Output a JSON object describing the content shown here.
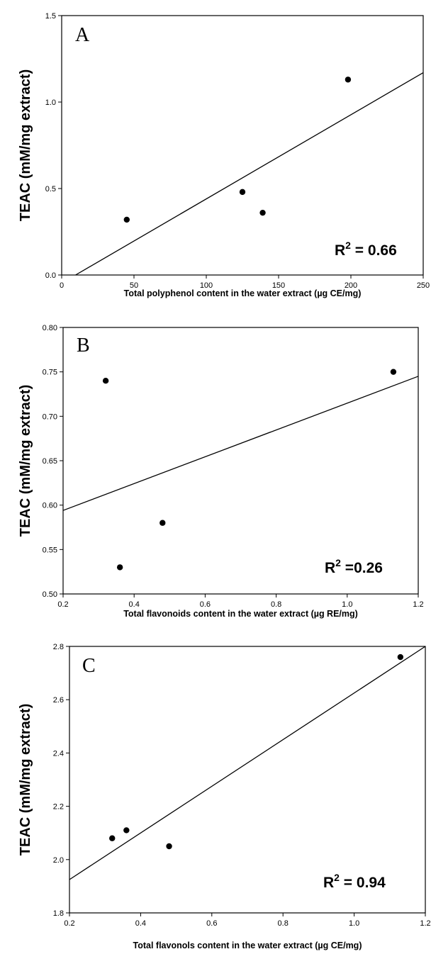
{
  "chart_data": [
    {
      "type": "scatter",
      "panel_label": "A",
      "xlabel": "Total polyphenol content in the water extract (µg CE/mg)",
      "ylabel": "TEAC (mM/mg extract)",
      "xlim": [
        0,
        250
      ],
      "ylim": [
        0.0,
        1.5
      ],
      "x_ticks": [
        "0",
        "50",
        "100",
        "150",
        "200",
        "250"
      ],
      "y_ticks": [
        "0.0",
        "0.5",
        "1.0",
        "1.5"
      ],
      "points": [
        {
          "x": 45,
          "y": 0.32
        },
        {
          "x": 125,
          "y": 0.48
        },
        {
          "x": 139,
          "y": 0.36
        },
        {
          "x": 198,
          "y": 1.13
        }
      ],
      "regression_line": {
        "x": [
          9.6,
          250
        ],
        "y": [
          0.0,
          1.17
        ]
      },
      "r2_label": "R",
      "r2_sup": "2",
      "r2_value": " = 0.66",
      "grid": false
    },
    {
      "type": "scatter",
      "panel_label": "B",
      "xlabel": "Total flavonoids content in the water extract (µg RE/mg)",
      "ylabel": "TEAC (mM/mg extract)",
      "xlim": [
        0.2,
        1.2
      ],
      "ylim": [
        0.5,
        0.8
      ],
      "x_ticks": [
        "0.2",
        "0.4",
        "0.6",
        "0.8",
        "1.0",
        "1.2"
      ],
      "y_ticks": [
        "0.50",
        "0.55",
        "0.60",
        "0.65",
        "0.70",
        "0.75",
        "0.80"
      ],
      "points": [
        {
          "x": 0.32,
          "y": 0.74
        },
        {
          "x": 0.36,
          "y": 0.53
        },
        {
          "x": 0.48,
          "y": 0.58
        },
        {
          "x": 1.13,
          "y": 0.75
        }
      ],
      "regression_line": {
        "x": [
          0.2,
          1.2
        ],
        "y": [
          0.594,
          0.745
        ]
      },
      "r2_label": "R",
      "r2_sup": "2",
      "r2_value": " =0.26",
      "grid": false
    },
    {
      "type": "scatter",
      "panel_label": "C",
      "xlabel": "Total flavonols content in the water extract (µg CE/mg)",
      "ylabel": "TEAC (mM/mg extract)",
      "xlim": [
        0.2,
        1.2
      ],
      "ylim": [
        1.8,
        2.8
      ],
      "x_ticks": [
        "0.2",
        "0.4",
        "0.6",
        "0.8",
        "1.0",
        "1.2"
      ],
      "y_ticks": [
        "1.8",
        "2.0",
        "2.2",
        "2.4",
        "2.6",
        "2.8"
      ],
      "points": [
        {
          "x": 0.32,
          "y": 2.08
        },
        {
          "x": 0.36,
          "y": 2.11
        },
        {
          "x": 0.48,
          "y": 2.05
        },
        {
          "x": 1.13,
          "y": 2.76
        }
      ],
      "regression_line": {
        "x": [
          0.2,
          1.2
        ],
        "y": [
          1.925,
          2.8
        ]
      },
      "r2_label": "R",
      "r2_sup": "2",
      "r2_value": " = 0.94",
      "grid": false
    }
  ]
}
